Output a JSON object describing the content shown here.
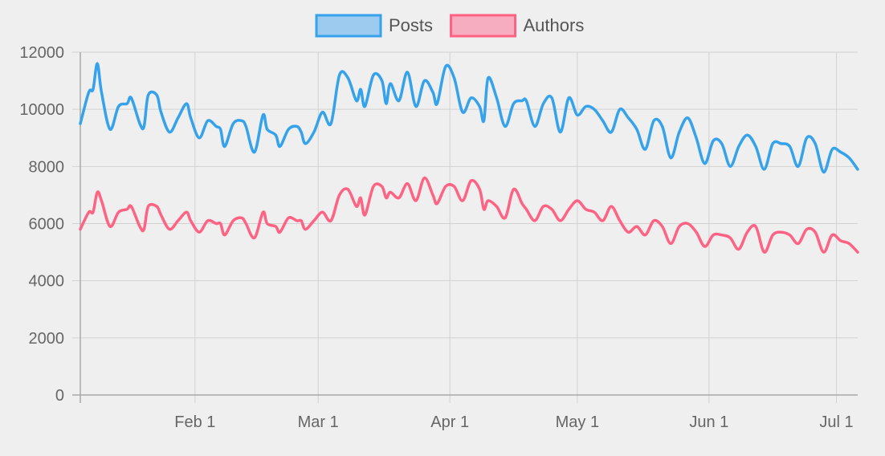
{
  "chart_data": {
    "type": "line",
    "title": "",
    "xlabel": "",
    "ylabel": "",
    "x_range": [
      "2024-01-05",
      "2024-07-06"
    ],
    "ylim": [
      0,
      12000
    ],
    "y_ticks": [
      0,
      2000,
      4000,
      6000,
      8000,
      10000,
      12000
    ],
    "x_ticks": [
      {
        "date": "2024-02-01",
        "label": "Feb 1"
      },
      {
        "date": "2024-03-01",
        "label": "Mar 1"
      },
      {
        "date": "2024-04-01",
        "label": "Apr 1"
      },
      {
        "date": "2024-05-01",
        "label": "May 1"
      },
      {
        "date": "2024-06-01",
        "label": "Jun 1"
      },
      {
        "date": "2024-07-01",
        "label": "Jul 1"
      }
    ],
    "grid": true,
    "legend_position": "top-center",
    "series": [
      {
        "name": "Posts",
        "color": "#36a2eb",
        "fill": "#9ccbef",
        "points": [
          [
            "2024-01-05",
            9500
          ],
          [
            "2024-01-07",
            10600
          ],
          [
            "2024-01-08",
            10700
          ],
          [
            "2024-01-09",
            11600
          ],
          [
            "2024-01-10",
            10600
          ],
          [
            "2024-01-12",
            9300
          ],
          [
            "2024-01-14",
            10100
          ],
          [
            "2024-01-16",
            10200
          ],
          [
            "2024-01-17",
            10400
          ],
          [
            "2024-01-19",
            9500
          ],
          [
            "2024-01-20",
            9400
          ],
          [
            "2024-01-21",
            10500
          ],
          [
            "2024-01-23",
            10500
          ],
          [
            "2024-01-24",
            9900
          ],
          [
            "2024-01-26",
            9200
          ],
          [
            "2024-01-28",
            9700
          ],
          [
            "2024-01-30",
            10200
          ],
          [
            "2024-01-31",
            9700
          ],
          [
            "2024-02-02",
            9000
          ],
          [
            "2024-02-04",
            9600
          ],
          [
            "2024-02-06",
            9400
          ],
          [
            "2024-02-07",
            9300
          ],
          [
            "2024-02-08",
            8700
          ],
          [
            "2024-02-10",
            9500
          ],
          [
            "2024-02-12",
            9600
          ],
          [
            "2024-02-13",
            9400
          ],
          [
            "2024-02-15",
            8500
          ],
          [
            "2024-02-17",
            9800
          ],
          [
            "2024-02-18",
            9300
          ],
          [
            "2024-02-20",
            9100
          ],
          [
            "2024-02-21",
            8700
          ],
          [
            "2024-02-23",
            9300
          ],
          [
            "2024-02-25",
            9400
          ],
          [
            "2024-02-26",
            9200
          ],
          [
            "2024-02-27",
            8800
          ],
          [
            "2024-02-29",
            9200
          ],
          [
            "2024-03-02",
            9900
          ],
          [
            "2024-03-04",
            9500
          ],
          [
            "2024-03-06",
            11200
          ],
          [
            "2024-03-08",
            11100
          ],
          [
            "2024-03-10",
            10300
          ],
          [
            "2024-03-11",
            10700
          ],
          [
            "2024-03-12",
            10100
          ],
          [
            "2024-03-14",
            11200
          ],
          [
            "2024-03-16",
            11000
          ],
          [
            "2024-03-17",
            10200
          ],
          [
            "2024-03-18",
            10900
          ],
          [
            "2024-03-20",
            10300
          ],
          [
            "2024-03-22",
            11300
          ],
          [
            "2024-03-24",
            10100
          ],
          [
            "2024-03-26",
            11000
          ],
          [
            "2024-03-28",
            10600
          ],
          [
            "2024-03-29",
            10200
          ],
          [
            "2024-03-31",
            11500
          ],
          [
            "2024-04-02",
            11100
          ],
          [
            "2024-04-04",
            9900
          ],
          [
            "2024-04-06",
            10400
          ],
          [
            "2024-04-08",
            10100
          ],
          [
            "2024-04-09",
            9600
          ],
          [
            "2024-04-10",
            11100
          ],
          [
            "2024-04-12",
            10400
          ],
          [
            "2024-04-14",
            9400
          ],
          [
            "2024-04-16",
            10200
          ],
          [
            "2024-04-18",
            10300
          ],
          [
            "2024-04-19",
            10300
          ],
          [
            "2024-04-21",
            9400
          ],
          [
            "2024-04-23",
            10200
          ],
          [
            "2024-04-25",
            10400
          ],
          [
            "2024-04-27",
            9200
          ],
          [
            "2024-04-29",
            10400
          ],
          [
            "2024-05-01",
            9800
          ],
          [
            "2024-05-03",
            10100
          ],
          [
            "2024-05-05",
            10000
          ],
          [
            "2024-05-07",
            9600
          ],
          [
            "2024-05-09",
            9200
          ],
          [
            "2024-05-11",
            10000
          ],
          [
            "2024-05-13",
            9700
          ],
          [
            "2024-05-15",
            9300
          ],
          [
            "2024-05-17",
            8600
          ],
          [
            "2024-05-19",
            9600
          ],
          [
            "2024-05-21",
            9400
          ],
          [
            "2024-05-23",
            8300
          ],
          [
            "2024-05-25",
            9200
          ],
          [
            "2024-05-27",
            9700
          ],
          [
            "2024-05-29",
            9000
          ],
          [
            "2024-05-31",
            8100
          ],
          [
            "2024-06-02",
            8900
          ],
          [
            "2024-06-04",
            8800
          ],
          [
            "2024-06-06",
            8000
          ],
          [
            "2024-06-08",
            8700
          ],
          [
            "2024-06-10",
            9100
          ],
          [
            "2024-06-12",
            8700
          ],
          [
            "2024-06-14",
            7900
          ],
          [
            "2024-06-16",
            8800
          ],
          [
            "2024-06-18",
            8800
          ],
          [
            "2024-06-20",
            8700
          ],
          [
            "2024-06-22",
            8000
          ],
          [
            "2024-06-24",
            9000
          ],
          [
            "2024-06-26",
            8800
          ],
          [
            "2024-06-28",
            7800
          ],
          [
            "2024-06-30",
            8600
          ],
          [
            "2024-07-02",
            8500
          ],
          [
            "2024-07-04",
            8300
          ],
          [
            "2024-07-06",
            7900
          ]
        ]
      },
      {
        "name": "Authors",
        "color": "#ff6384",
        "fill": "#f7adc0",
        "points": [
          [
            "2024-01-05",
            5800
          ],
          [
            "2024-01-07",
            6400
          ],
          [
            "2024-01-08",
            6400
          ],
          [
            "2024-01-09",
            7100
          ],
          [
            "2024-01-10",
            6800
          ],
          [
            "2024-01-12",
            5900
          ],
          [
            "2024-01-14",
            6400
          ],
          [
            "2024-01-16",
            6500
          ],
          [
            "2024-01-17",
            6600
          ],
          [
            "2024-01-19",
            5900
          ],
          [
            "2024-01-20",
            5800
          ],
          [
            "2024-01-21",
            6600
          ],
          [
            "2024-01-23",
            6600
          ],
          [
            "2024-01-24",
            6300
          ],
          [
            "2024-01-26",
            5800
          ],
          [
            "2024-01-28",
            6100
          ],
          [
            "2024-01-30",
            6400
          ],
          [
            "2024-01-31",
            6100
          ],
          [
            "2024-02-02",
            5700
          ],
          [
            "2024-02-04",
            6100
          ],
          [
            "2024-02-06",
            6000
          ],
          [
            "2024-02-07",
            6000
          ],
          [
            "2024-02-08",
            5600
          ],
          [
            "2024-02-10",
            6100
          ],
          [
            "2024-02-12",
            6200
          ],
          [
            "2024-02-13",
            6000
          ],
          [
            "2024-02-15",
            5500
          ],
          [
            "2024-02-17",
            6400
          ],
          [
            "2024-02-18",
            6000
          ],
          [
            "2024-02-20",
            5900
          ],
          [
            "2024-02-21",
            5700
          ],
          [
            "2024-02-23",
            6200
          ],
          [
            "2024-02-25",
            6100
          ],
          [
            "2024-02-26",
            6100
          ],
          [
            "2024-02-27",
            5800
          ],
          [
            "2024-02-29",
            6100
          ],
          [
            "2024-03-02",
            6400
          ],
          [
            "2024-03-04",
            6100
          ],
          [
            "2024-03-06",
            7000
          ],
          [
            "2024-03-08",
            7200
          ],
          [
            "2024-03-10",
            6600
          ],
          [
            "2024-03-11",
            6900
          ],
          [
            "2024-03-12",
            6300
          ],
          [
            "2024-03-14",
            7300
          ],
          [
            "2024-03-16",
            7300
          ],
          [
            "2024-03-17",
            6900
          ],
          [
            "2024-03-18",
            7100
          ],
          [
            "2024-03-20",
            6900
          ],
          [
            "2024-03-22",
            7400
          ],
          [
            "2024-03-24",
            6800
          ],
          [
            "2024-03-26",
            7600
          ],
          [
            "2024-03-28",
            7000
          ],
          [
            "2024-03-29",
            6700
          ],
          [
            "2024-03-31",
            7300
          ],
          [
            "2024-04-02",
            7300
          ],
          [
            "2024-04-04",
            6800
          ],
          [
            "2024-04-06",
            7500
          ],
          [
            "2024-04-08",
            7200
          ],
          [
            "2024-04-09",
            6500
          ],
          [
            "2024-04-10",
            6800
          ],
          [
            "2024-04-12",
            6600
          ],
          [
            "2024-04-14",
            6200
          ],
          [
            "2024-04-16",
            7200
          ],
          [
            "2024-04-18",
            6700
          ],
          [
            "2024-04-19",
            6500
          ],
          [
            "2024-04-21",
            6100
          ],
          [
            "2024-04-23",
            6600
          ],
          [
            "2024-04-25",
            6500
          ],
          [
            "2024-04-27",
            6100
          ],
          [
            "2024-04-29",
            6500
          ],
          [
            "2024-05-01",
            6800
          ],
          [
            "2024-05-03",
            6500
          ],
          [
            "2024-05-05",
            6400
          ],
          [
            "2024-05-07",
            6100
          ],
          [
            "2024-05-09",
            6600
          ],
          [
            "2024-05-11",
            6100
          ],
          [
            "2024-05-13",
            5700
          ],
          [
            "2024-05-15",
            5900
          ],
          [
            "2024-05-17",
            5600
          ],
          [
            "2024-05-19",
            6100
          ],
          [
            "2024-05-21",
            5900
          ],
          [
            "2024-05-23",
            5300
          ],
          [
            "2024-05-25",
            5900
          ],
          [
            "2024-05-27",
            6000
          ],
          [
            "2024-05-29",
            5700
          ],
          [
            "2024-05-31",
            5200
          ],
          [
            "2024-06-02",
            5600
          ],
          [
            "2024-06-04",
            5600
          ],
          [
            "2024-06-06",
            5500
          ],
          [
            "2024-06-08",
            5100
          ],
          [
            "2024-06-10",
            5700
          ],
          [
            "2024-06-12",
            5900
          ],
          [
            "2024-06-14",
            5000
          ],
          [
            "2024-06-16",
            5600
          ],
          [
            "2024-06-18",
            5700
          ],
          [
            "2024-06-20",
            5600
          ],
          [
            "2024-06-22",
            5300
          ],
          [
            "2024-06-24",
            5800
          ],
          [
            "2024-06-26",
            5700
          ],
          [
            "2024-06-28",
            5000
          ],
          [
            "2024-06-30",
            5600
          ],
          [
            "2024-07-02",
            5400
          ],
          [
            "2024-07-04",
            5300
          ],
          [
            "2024-07-06",
            5000
          ]
        ]
      }
    ]
  }
}
